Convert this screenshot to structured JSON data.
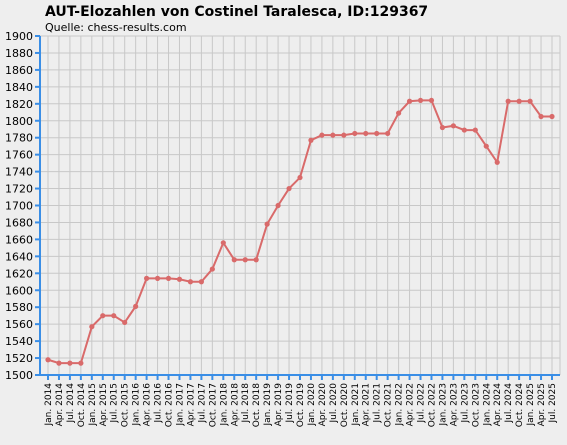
{
  "chart_data": {
    "type": "line",
    "title": "AUT-Elozahlen von Costinel Taralesca, ID:129367",
    "subtitle": "Quelle: chess-results.com",
    "xlabel": "",
    "ylabel": "",
    "ylim": [
      1500,
      1900
    ],
    "ytick_step": 20,
    "grid": true,
    "colors": {
      "line": "#d96a6a",
      "axis": "#3a8ee6",
      "grid": "#c8c8c8",
      "background": "#eeeeee"
    },
    "categories": [
      "Jan. 2014",
      "Apr. 2014",
      "Jul. 2014",
      "Oct. 2014",
      "Jan. 2015",
      "Apr. 2015",
      "Jul. 2015",
      "Oct. 2015",
      "Jan. 2016",
      "Apr. 2016",
      "Jul. 2016",
      "Oct. 2016",
      "Jan. 2017",
      "Apr. 2017",
      "Jul. 2017",
      "Oct. 2017",
      "Jan. 2018",
      "Apr. 2018",
      "Jul. 2018",
      "Oct. 2018",
      "Jan. 2019",
      "Apr. 2019",
      "Jul. 2019",
      "Oct. 2019",
      "Jan. 2020",
      "Apr. 2020",
      "Jul. 2020",
      "Oct. 2020",
      "Jan. 2021",
      "Apr. 2021",
      "Jul. 2021",
      "Oct. 2021",
      "Jan. 2022",
      "Apr. 2022",
      "Jul. 2022",
      "Oct. 2022",
      "Jan. 2023",
      "Apr. 2023",
      "Jul. 2023",
      "Oct. 2023",
      "Jan. 2024",
      "Apr. 2024",
      "Jul. 2024",
      "Oct. 2024",
      "Jan. 2025",
      "Apr. 2025",
      "Jul. 2025"
    ],
    "values": [
      1518,
      1514,
      1514,
      1514,
      1557,
      1570,
      1570,
      1562,
      1581,
      1614,
      1614,
      1614,
      1613,
      1610,
      1610,
      1625,
      1656,
      1636,
      1636,
      1636,
      1678,
      1700,
      1720,
      1733,
      1777,
      1783,
      1783,
      1783,
      1785,
      1785,
      1785,
      1785,
      1809,
      1823,
      1824,
      1824,
      1792,
      1794,
      1789,
      1789,
      1770,
      1751,
      1823,
      1823,
      1823,
      1805,
      1805
    ]
  }
}
